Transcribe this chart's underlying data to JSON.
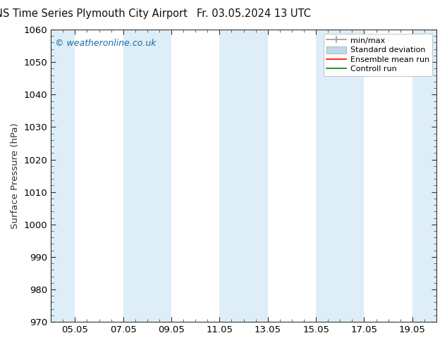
{
  "title_left": "ENS Time Series Plymouth City Airport",
  "title_right": "Fr. 03.05.2024 13 UTC",
  "ylabel": "Surface Pressure (hPa)",
  "ylim": [
    970,
    1060
  ],
  "yticks": [
    970,
    980,
    990,
    1000,
    1010,
    1020,
    1030,
    1040,
    1050,
    1060
  ],
  "xlim": [
    0,
    16
  ],
  "xtick_labels": [
    "05.05",
    "07.05",
    "09.05",
    "11.05",
    "13.05",
    "15.05",
    "17.05",
    "19.05"
  ],
  "xtick_positions": [
    1,
    3,
    5,
    7,
    9,
    11,
    13,
    15
  ],
  "shaded_bands": [
    {
      "x_start": 0,
      "x_end": 1,
      "color": "#ddeef8"
    },
    {
      "x_start": 3,
      "x_end": 5,
      "color": "#ddeef8"
    },
    {
      "x_start": 7,
      "x_end": 9,
      "color": "#ddeef8"
    },
    {
      "x_start": 11,
      "x_end": 13,
      "color": "#ddeef8"
    },
    {
      "x_start": 15,
      "x_end": 16,
      "color": "#ddeef8"
    }
  ],
  "watermark": "© weatheronline.co.uk",
  "watermark_color": "#1a6aa3",
  "legend_labels": [
    "min/max",
    "Standard deviation",
    "Ensemble mean run",
    "Controll run"
  ],
  "legend_line_colors": [
    "#999999",
    "#c0d8ec",
    "#ff0000",
    "#008000"
  ],
  "bg_color": "#ffffff",
  "plot_bg_color": "#ffffff",
  "axis_color": "#333333",
  "title_color": "#111111",
  "font_size": 10.5
}
